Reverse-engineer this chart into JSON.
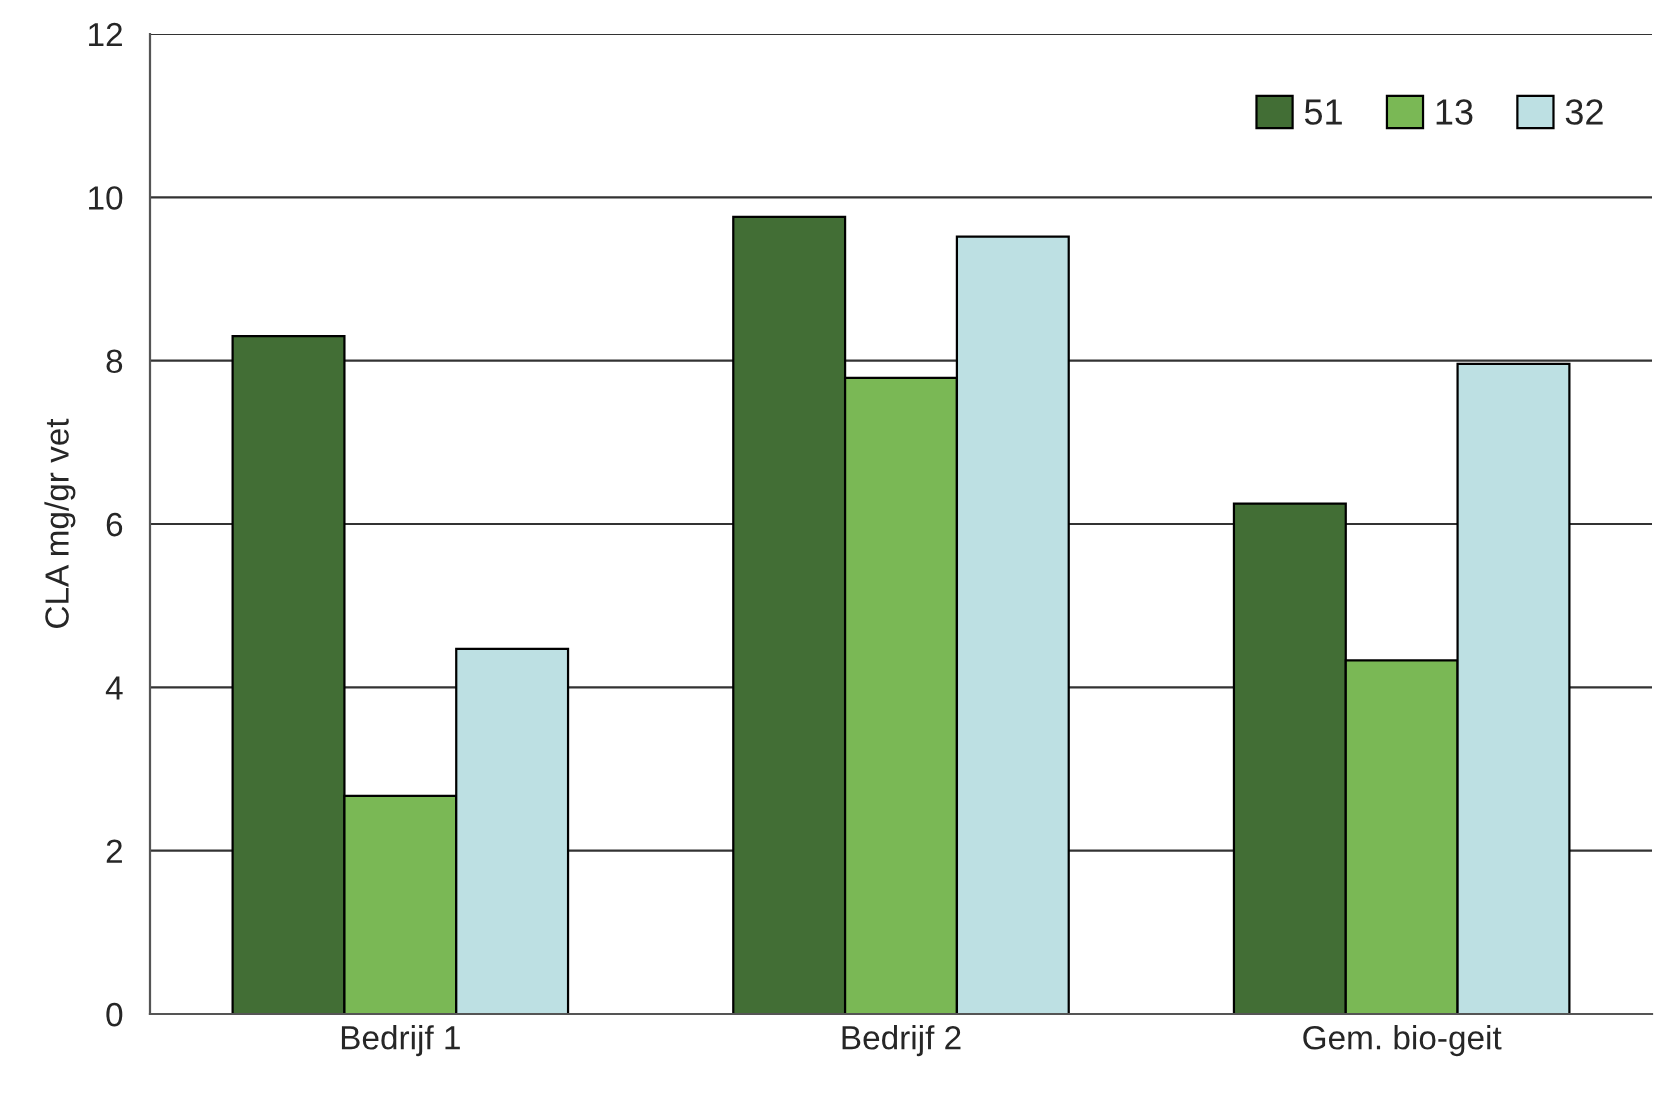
{
  "chart_data": {
    "type": "bar",
    "ylabel": "CLA mg/gr vet",
    "categories": [
      "Bedrijf 1",
      "Bedrijf 2",
      "Gem. bio-geit"
    ],
    "series": [
      {
        "name": "51",
        "color": "#426e35",
        "values": [
          8.3,
          9.76,
          6.25
        ]
      },
      {
        "name": "13",
        "color": "#7ab855",
        "values": [
          2.67,
          7.79,
          4.33
        ]
      },
      {
        "name": "32",
        "color": "#bde0e3",
        "values": [
          4.47,
          9.52,
          7.96
        ]
      }
    ],
    "ylim": [
      0,
      12
    ],
    "yticks": [
      0,
      2,
      4,
      6,
      8,
      10,
      12
    ],
    "grid": "y",
    "legend": "top right"
  }
}
